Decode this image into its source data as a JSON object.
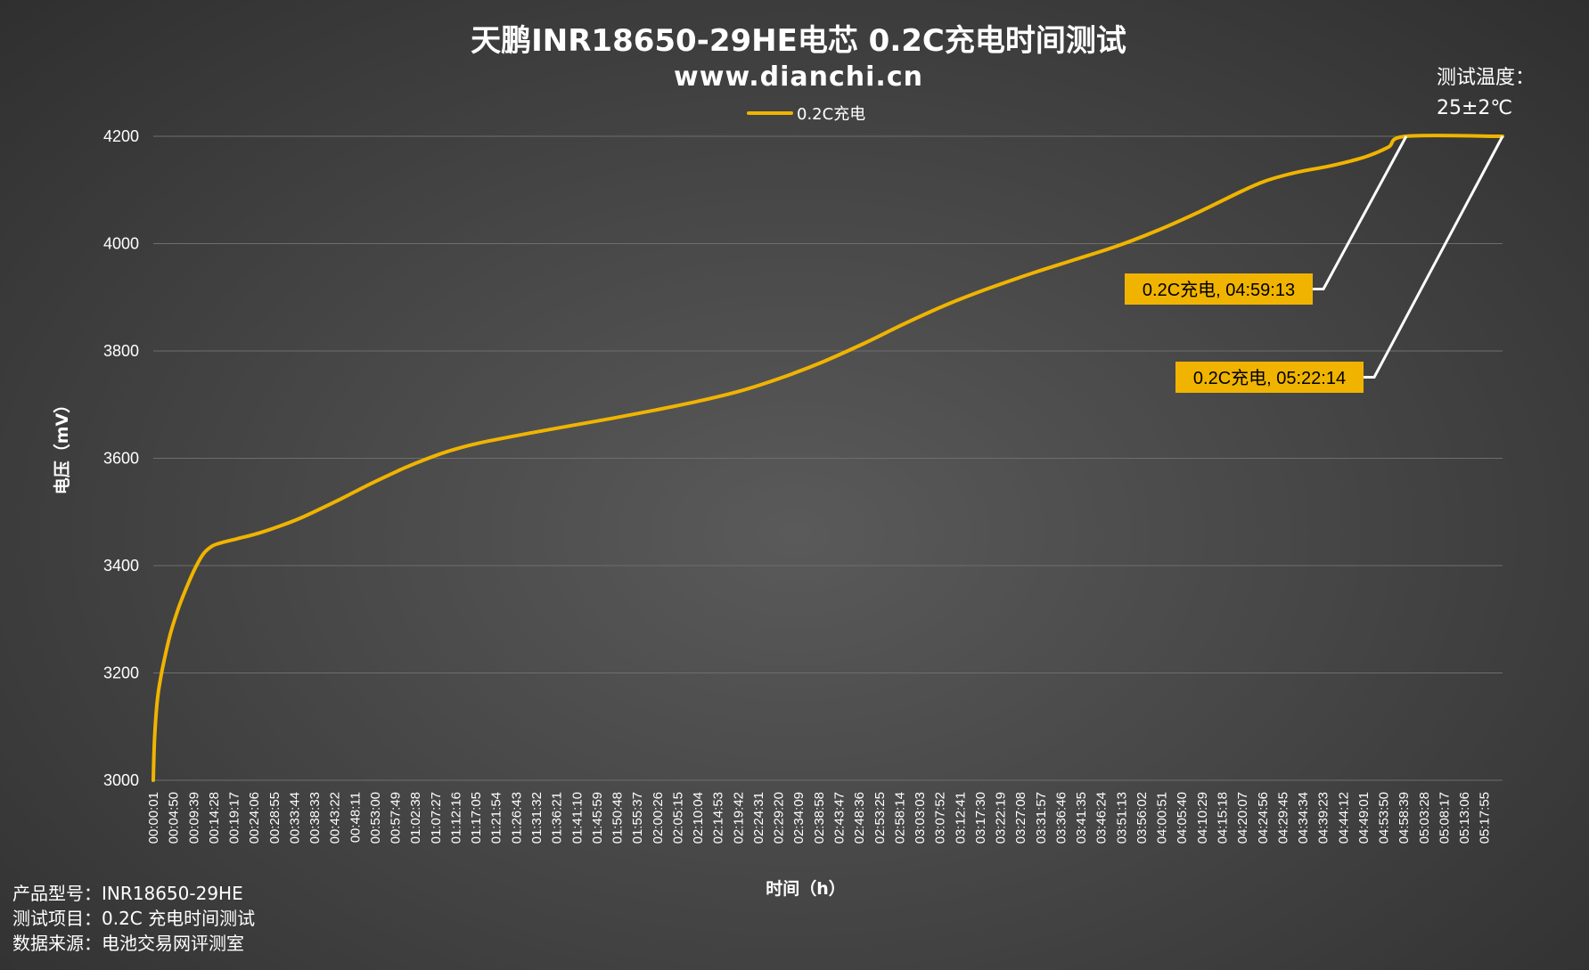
{
  "header": {
    "title": "天鹏INR18650-29HE电芯 0.2C充电时间测试",
    "subtitle": "www.dianchi.cn"
  },
  "test_conditions": {
    "line1": "测试温度：",
    "line2": "25±2℃"
  },
  "footer": {
    "model": "产品型号：INR18650-29HE",
    "item": "测试项目：0.2C 充电时间测试",
    "source": "数据来源：电池交易网评测室"
  },
  "colors": {
    "series": "#f0b400",
    "callout_bg": "#f0b400",
    "leader_line": "#ffffff"
  },
  "chart_data": {
    "type": "line",
    "title": "天鹏INR18650-29HE电芯 0.2C充电时间测试",
    "xlabel": "时间（h）",
    "ylabel": "电压（mV）",
    "ylim": [
      3000,
      4200
    ],
    "yticks": [
      3000,
      3200,
      3400,
      3600,
      3800,
      4000,
      4200
    ],
    "grid": true,
    "legend_position": "top-center",
    "x_tick_labels": [
      "00:00:01",
      "00:04:50",
      "00:09:39",
      "00:14:28",
      "00:19:17",
      "00:24:06",
      "00:28:55",
      "00:33:44",
      "00:38:33",
      "00:43:22",
      "00:48:11",
      "00:53:00",
      "00:57:49",
      "01:02:38",
      "01:07:27",
      "01:12:16",
      "01:17:05",
      "01:21:54",
      "01:26:43",
      "01:31:32",
      "01:36:21",
      "01:41:10",
      "01:45:59",
      "01:50:48",
      "01:55:37",
      "02:00:26",
      "02:05:15",
      "02:10:04",
      "02:14:53",
      "02:19:42",
      "02:24:31",
      "02:29:20",
      "02:34:09",
      "02:38:58",
      "02:43:47",
      "02:48:36",
      "02:53:25",
      "02:58:14",
      "03:03:03",
      "03:07:52",
      "03:12:41",
      "03:17:30",
      "03:22:19",
      "03:27:08",
      "03:31:57",
      "03:36:46",
      "03:41:35",
      "03:46:24",
      "03:51:13",
      "03:56:02",
      "04:00:51",
      "04:05:40",
      "04:10:29",
      "04:15:18",
      "04:20:07",
      "04:24:56",
      "04:29:45",
      "04:34:34",
      "04:39:23",
      "04:44:12",
      "04:49:01",
      "04:53:50",
      "04:58:39",
      "05:03:28",
      "05:08:17",
      "05:13:06",
      "05:17:55"
    ],
    "x_range": [
      "00:00:01",
      "05:22:14"
    ],
    "series": [
      {
        "name": "0.2C充电",
        "color": "#f0b400",
        "points": [
          [
            "00:00:01",
            3000
          ],
          [
            "00:00:20",
            3080
          ],
          [
            "00:01:00",
            3150
          ],
          [
            "00:02:00",
            3200
          ],
          [
            "00:04:00",
            3270
          ],
          [
            "00:06:00",
            3320
          ],
          [
            "00:08:00",
            3360
          ],
          [
            "00:10:00",
            3395
          ],
          [
            "00:12:00",
            3422
          ],
          [
            "00:14:00",
            3436
          ],
          [
            "00:16:00",
            3442
          ],
          [
            "00:20:00",
            3450
          ],
          [
            "00:25:00",
            3460
          ],
          [
            "00:30:00",
            3473
          ],
          [
            "00:35:00",
            3488
          ],
          [
            "00:40:00",
            3506
          ],
          [
            "00:45:00",
            3525
          ],
          [
            "00:50:00",
            3545
          ],
          [
            "00:55:00",
            3564
          ],
          [
            "01:00:00",
            3582
          ],
          [
            "01:05:00",
            3598
          ],
          [
            "01:10:00",
            3612
          ],
          [
            "01:15:00",
            3623
          ],
          [
            "01:20:00",
            3632
          ],
          [
            "01:30:00",
            3647
          ],
          [
            "01:40:00",
            3661
          ],
          [
            "01:50:00",
            3675
          ],
          [
            "02:00:00",
            3690
          ],
          [
            "02:10:00",
            3706
          ],
          [
            "02:20:00",
            3725
          ],
          [
            "02:30:00",
            3750
          ],
          [
            "02:40:00",
            3780
          ],
          [
            "02:50:00",
            3815
          ],
          [
            "03:00:00",
            3853
          ],
          [
            "03:10:00",
            3888
          ],
          [
            "03:20:00",
            3918
          ],
          [
            "03:30:00",
            3945
          ],
          [
            "03:40:00",
            3970
          ],
          [
            "03:50:00",
            3995
          ],
          [
            "04:00:00",
            4025
          ],
          [
            "04:10:00",
            4060
          ],
          [
            "04:20:00",
            4098
          ],
          [
            "04:25:00",
            4115
          ],
          [
            "04:30:00",
            4127
          ],
          [
            "04:35:00",
            4136
          ],
          [
            "04:40:00",
            4143
          ],
          [
            "04:45:00",
            4152
          ],
          [
            "04:50:00",
            4163
          ],
          [
            "04:55:00",
            4180
          ],
          [
            "04:59:13",
            4200
          ],
          [
            "05:22:14",
            4200
          ]
        ]
      }
    ],
    "annotations": [
      {
        "label": "0.2C充电, 04:59:13",
        "x": "04:59:13",
        "y": 4200
      },
      {
        "label": "0.2C充电, 05:22:14",
        "x": "05:22:14",
        "y": 4200
      }
    ]
  }
}
